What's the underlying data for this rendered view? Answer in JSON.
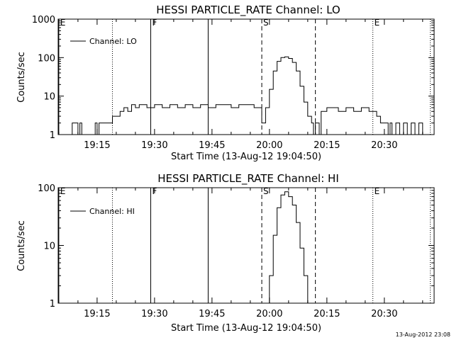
{
  "chart_data": [
    {
      "type": "line",
      "title": "HESSI PARTICLE_RATE Channel: LO",
      "xlabel": "Start Time (13-Aug-12 19:04:50)",
      "ylabel": "Counts/sec",
      "yscale": "log",
      "ylim": [
        1,
        1000
      ],
      "xlim": [
        "19:04:50",
        "20:43:00"
      ],
      "x_tick_labels": [
        "19:15",
        "19:30",
        "19:45",
        "20:00",
        "20:15",
        "20:30"
      ],
      "y_tick_labels": [
        "1",
        "10",
        "100",
        "1000"
      ],
      "y_ticks": [
        1,
        10,
        100,
        1000
      ],
      "grid": false,
      "legend": {
        "position": "top-left",
        "entries": [
          "Channel: LO"
        ]
      },
      "markers": [
        {
          "time": "19:05:00",
          "label": "E",
          "style": "solid"
        },
        {
          "time": "19:19:00",
          "label": "",
          "style": "dotted"
        },
        {
          "time": "19:29:00",
          "label": "F",
          "style": "solid"
        },
        {
          "time": "19:44:00",
          "label": "",
          "style": "solid"
        },
        {
          "time": "19:58:00",
          "label": "S",
          "style": "dashed"
        },
        {
          "time": "20:12:00",
          "label": "",
          "style": "dashed"
        },
        {
          "time": "20:27:00",
          "label": "E",
          "style": "dotted"
        },
        {
          "time": "20:42:00",
          "label": "",
          "style": "dotted"
        }
      ],
      "series": [
        {
          "name": "Channel: LO",
          "points": [
            [
              "19:08:00",
              1
            ],
            [
              "19:08:30",
              2
            ],
            [
              "19:09:30",
              2
            ],
            [
              "19:10:00",
              1
            ],
            [
              "19:10:30",
              2
            ],
            [
              "19:11:00",
              1
            ],
            [
              "19:14:00",
              1
            ],
            [
              "19:14:30",
              2
            ],
            [
              "19:15:00",
              1
            ],
            [
              "19:15:30",
              2
            ],
            [
              "19:18:00",
              2
            ],
            [
              "19:19:00",
              3
            ],
            [
              "19:20:00",
              3
            ],
            [
              "19:21:00",
              4
            ],
            [
              "19:22:00",
              5
            ],
            [
              "19:23:00",
              4
            ],
            [
              "19:24:00",
              6
            ],
            [
              "19:25:00",
              5
            ],
            [
              "19:26:00",
              6
            ],
            [
              "19:28:00",
              5
            ],
            [
              "19:30:00",
              6
            ],
            [
              "19:32:00",
              5
            ],
            [
              "19:34:00",
              6
            ],
            [
              "19:36:00",
              5
            ],
            [
              "19:38:00",
              6
            ],
            [
              "19:40:00",
              5
            ],
            [
              "19:42:00",
              6
            ],
            [
              "19:44:00",
              5
            ],
            [
              "19:46:00",
              6
            ],
            [
              "19:48:00",
              6
            ],
            [
              "19:50:00",
              5
            ],
            [
              "19:52:00",
              6
            ],
            [
              "19:54:00",
              6
            ],
            [
              "19:56:00",
              5
            ],
            [
              "19:57:00",
              5
            ],
            [
              "19:58:00",
              2
            ],
            [
              "19:59:00",
              5
            ],
            [
              "20:00:00",
              15
            ],
            [
              "20:01:00",
              45
            ],
            [
              "20:02:00",
              80
            ],
            [
              "20:03:00",
              100
            ],
            [
              "20:04:00",
              105
            ],
            [
              "20:05:00",
              95
            ],
            [
              "20:06:00",
              75
            ],
            [
              "20:07:00",
              45
            ],
            [
              "20:08:00",
              18
            ],
            [
              "20:09:00",
              7
            ],
            [
              "20:10:00",
              3
            ],
            [
              "20:11:00",
              2
            ],
            [
              "20:11:30",
              1
            ],
            [
              "20:12:00",
              2
            ],
            [
              "20:13:00",
              1
            ],
            [
              "20:13:30",
              4
            ],
            [
              "20:15:00",
              5
            ],
            [
              "20:18:00",
              4
            ],
            [
              "20:20:00",
              5
            ],
            [
              "20:22:00",
              4
            ],
            [
              "20:24:00",
              5
            ],
            [
              "20:26:00",
              4
            ],
            [
              "20:27:00",
              4
            ],
            [
              "20:28:00",
              3
            ],
            [
              "20:29:00",
              2
            ],
            [
              "20:30:00",
              2
            ],
            [
              "20:31:00",
              1
            ],
            [
              "20:31:30",
              2
            ],
            [
              "20:32:00",
              1
            ],
            [
              "20:33:00",
              2
            ],
            [
              "20:34:00",
              1
            ],
            [
              "20:35:00",
              2
            ],
            [
              "20:36:00",
              1
            ],
            [
              "20:37:00",
              2
            ],
            [
              "20:38:00",
              1
            ],
            [
              "20:39:00",
              2
            ],
            [
              "20:40:00",
              1
            ]
          ]
        }
      ]
    },
    {
      "type": "line",
      "title": "HESSI PARTICLE_RATE Channel: HI",
      "xlabel": "Start Time (13-Aug-12 19:04:50)",
      "ylabel": "Counts/sec",
      "yscale": "log",
      "ylim": [
        1,
        100
      ],
      "xlim": [
        "19:04:50",
        "20:43:00"
      ],
      "x_tick_labels": [
        "19:15",
        "19:30",
        "19:45",
        "20:00",
        "20:15",
        "20:30"
      ],
      "y_tick_labels": [
        "1",
        "10",
        "100"
      ],
      "y_ticks": [
        1,
        10,
        100
      ],
      "grid": false,
      "legend": {
        "position": "top-left",
        "entries": [
          "Channel: HI"
        ]
      },
      "markers": [
        {
          "time": "19:05:00",
          "label": "E",
          "style": "solid"
        },
        {
          "time": "19:19:00",
          "label": "",
          "style": "dotted"
        },
        {
          "time": "19:29:00",
          "label": "F",
          "style": "solid"
        },
        {
          "time": "19:44:00",
          "label": "",
          "style": "solid"
        },
        {
          "time": "19:58:00",
          "label": "S",
          "style": "dashed"
        },
        {
          "time": "20:12:00",
          "label": "",
          "style": "dashed"
        },
        {
          "time": "20:27:00",
          "label": "E",
          "style": "dotted"
        },
        {
          "time": "20:42:00",
          "label": "",
          "style": "dotted"
        }
      ],
      "series": [
        {
          "name": "Channel: HI",
          "points": [
            [
              "19:59:30",
              1
            ],
            [
              "20:00:00",
              3
            ],
            [
              "20:01:00",
              15
            ],
            [
              "20:02:00",
              45
            ],
            [
              "20:03:00",
              75
            ],
            [
              "20:04:00",
              85
            ],
            [
              "20:05:00",
              70
            ],
            [
              "20:06:00",
              50
            ],
            [
              "20:07:00",
              25
            ],
            [
              "20:08:00",
              9
            ],
            [
              "20:09:00",
              3
            ],
            [
              "20:10:00",
              1
            ]
          ]
        }
      ]
    }
  ],
  "footer": {
    "timestamp": "13-Aug-2012 23:08"
  }
}
